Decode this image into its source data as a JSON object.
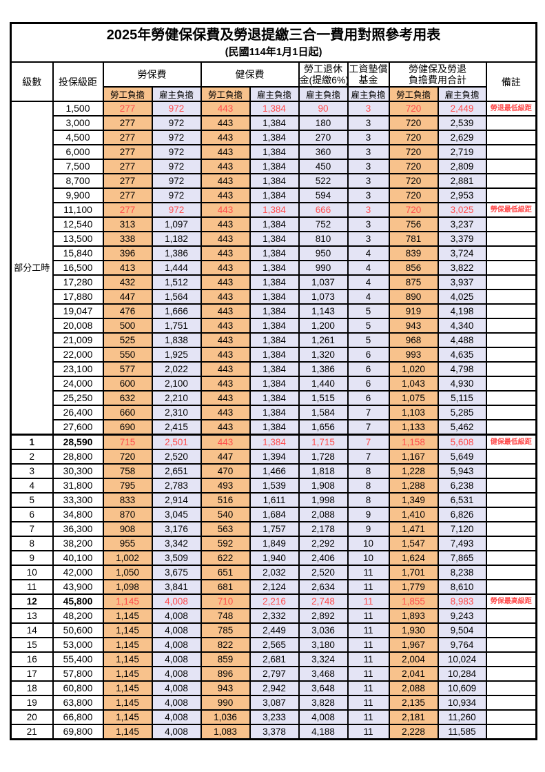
{
  "title": "2025年勞健保保費及勞退提繳三合一費用對照參考用表",
  "subtitle": "(民國114年1月1日起)",
  "columns": {
    "level": "級數",
    "bracket": "投保級距",
    "labor": "勞保費",
    "health": "健保費",
    "pension_l1": "勞工退休",
    "pension_l2": "金(提繳6%)",
    "fund_l1": "工資墊償",
    "fund_l2": "基金",
    "total_l1": "勞健保及勞退",
    "total_l2": "負擔費用合計",
    "remark": "備註",
    "employee_share": "勞工負擔",
    "employer_share": "雇主負擔"
  },
  "part_time_label": "部分工時",
  "part_time_rowspan": 23,
  "colors": {
    "employee_bg": "#F8C28C",
    "employer_bg": "#E4E4F5",
    "highlight_red": "#FF4D4D",
    "border": "#000000"
  },
  "rows": [
    {
      "level": "",
      "bracket": "1,500",
      "values": [
        "277",
        "972",
        "443",
        "1,384",
        "90",
        "3",
        "720",
        "2,449"
      ],
      "remark": "勞退最低級距",
      "red": true,
      "bold": false
    },
    {
      "level": "",
      "bracket": "3,000",
      "values": [
        "277",
        "972",
        "443",
        "1,384",
        "180",
        "3",
        "720",
        "2,539"
      ],
      "remark": ""
    },
    {
      "level": "",
      "bracket": "4,500",
      "values": [
        "277",
        "972",
        "443",
        "1,384",
        "270",
        "3",
        "720",
        "2,629"
      ],
      "remark": ""
    },
    {
      "level": "",
      "bracket": "6,000",
      "values": [
        "277",
        "972",
        "443",
        "1,384",
        "360",
        "3",
        "720",
        "2,719"
      ],
      "remark": ""
    },
    {
      "level": "",
      "bracket": "7,500",
      "values": [
        "277",
        "972",
        "443",
        "1,384",
        "450",
        "3",
        "720",
        "2,809"
      ],
      "remark": ""
    },
    {
      "level": "",
      "bracket": "8,700",
      "values": [
        "277",
        "972",
        "443",
        "1,384",
        "522",
        "3",
        "720",
        "2,881"
      ],
      "remark": ""
    },
    {
      "level": "",
      "bracket": "9,900",
      "values": [
        "277",
        "972",
        "443",
        "1,384",
        "594",
        "3",
        "720",
        "2,953"
      ],
      "remark": ""
    },
    {
      "level": "",
      "bracket": "11,100",
      "values": [
        "277",
        "972",
        "443",
        "1,384",
        "666",
        "3",
        "720",
        "3,025"
      ],
      "remark": "勞保最低級距",
      "red": true,
      "bold": false
    },
    {
      "level": "",
      "bracket": "12,540",
      "values": [
        "313",
        "1,097",
        "443",
        "1,384",
        "752",
        "3",
        "756",
        "3,237"
      ],
      "remark": ""
    },
    {
      "level": "",
      "bracket": "13,500",
      "values": [
        "338",
        "1,182",
        "443",
        "1,384",
        "810",
        "3",
        "781",
        "3,379"
      ],
      "remark": ""
    },
    {
      "level": "",
      "bracket": "15,840",
      "values": [
        "396",
        "1,386",
        "443",
        "1,384",
        "950",
        "4",
        "839",
        "3,724"
      ],
      "remark": ""
    },
    {
      "level": "",
      "bracket": "16,500",
      "values": [
        "413",
        "1,444",
        "443",
        "1,384",
        "990",
        "4",
        "856",
        "3,822"
      ],
      "remark": ""
    },
    {
      "level": "",
      "bracket": "17,280",
      "values": [
        "432",
        "1,512",
        "443",
        "1,384",
        "1,037",
        "4",
        "875",
        "3,937"
      ],
      "remark": ""
    },
    {
      "level": "",
      "bracket": "17,880",
      "values": [
        "447",
        "1,564",
        "443",
        "1,384",
        "1,073",
        "4",
        "890",
        "4,025"
      ],
      "remark": ""
    },
    {
      "level": "",
      "bracket": "19,047",
      "values": [
        "476",
        "1,666",
        "443",
        "1,384",
        "1,143",
        "5",
        "919",
        "4,198"
      ],
      "remark": ""
    },
    {
      "level": "",
      "bracket": "20,008",
      "values": [
        "500",
        "1,751",
        "443",
        "1,384",
        "1,200",
        "5",
        "943",
        "4,340"
      ],
      "remark": ""
    },
    {
      "level": "",
      "bracket": "21,009",
      "values": [
        "525",
        "1,838",
        "443",
        "1,384",
        "1,261",
        "5",
        "968",
        "4,488"
      ],
      "remark": ""
    },
    {
      "level": "",
      "bracket": "22,000",
      "values": [
        "550",
        "1,925",
        "443",
        "1,384",
        "1,320",
        "6",
        "993",
        "4,635"
      ],
      "remark": ""
    },
    {
      "level": "",
      "bracket": "23,100",
      "values": [
        "577",
        "2,022",
        "443",
        "1,384",
        "1,386",
        "6",
        "1,020",
        "4,798"
      ],
      "remark": ""
    },
    {
      "level": "",
      "bracket": "24,000",
      "values": [
        "600",
        "2,100",
        "443",
        "1,384",
        "1,440",
        "6",
        "1,043",
        "4,930"
      ],
      "remark": ""
    },
    {
      "level": "",
      "bracket": "25,250",
      "values": [
        "632",
        "2,210",
        "443",
        "1,384",
        "1,515",
        "6",
        "1,075",
        "5,115"
      ],
      "remark": ""
    },
    {
      "level": "",
      "bracket": "26,400",
      "values": [
        "660",
        "2,310",
        "443",
        "1,384",
        "1,584",
        "7",
        "1,103",
        "5,285"
      ],
      "remark": ""
    },
    {
      "level": "",
      "bracket": "27,600",
      "values": [
        "690",
        "2,415",
        "443",
        "1,384",
        "1,656",
        "7",
        "1,133",
        "5,462"
      ],
      "remark": ""
    },
    {
      "level": "1",
      "bracket": "28,590",
      "values": [
        "715",
        "2,501",
        "443",
        "1,384",
        "1,715",
        "7",
        "1,158",
        "5,608"
      ],
      "remark": "健保最低級距",
      "red": true,
      "bold": true
    },
    {
      "level": "2",
      "bracket": "28,800",
      "values": [
        "720",
        "2,520",
        "447",
        "1,394",
        "1,728",
        "7",
        "1,167",
        "5,649"
      ],
      "remark": ""
    },
    {
      "level": "3",
      "bracket": "30,300",
      "values": [
        "758",
        "2,651",
        "470",
        "1,466",
        "1,818",
        "8",
        "1,228",
        "5,943"
      ],
      "remark": ""
    },
    {
      "level": "4",
      "bracket": "31,800",
      "values": [
        "795",
        "2,783",
        "493",
        "1,539",
        "1,908",
        "8",
        "1,288",
        "6,238"
      ],
      "remark": ""
    },
    {
      "level": "5",
      "bracket": "33,300",
      "values": [
        "833",
        "2,914",
        "516",
        "1,611",
        "1,998",
        "8",
        "1,349",
        "6,531"
      ],
      "remark": ""
    },
    {
      "level": "6",
      "bracket": "34,800",
      "values": [
        "870",
        "3,045",
        "540",
        "1,684",
        "2,088",
        "9",
        "1,410",
        "6,826"
      ],
      "remark": ""
    },
    {
      "level": "7",
      "bracket": "36,300",
      "values": [
        "908",
        "3,176",
        "563",
        "1,757",
        "2,178",
        "9",
        "1,471",
        "7,120"
      ],
      "remark": ""
    },
    {
      "level": "8",
      "bracket": "38,200",
      "values": [
        "955",
        "3,342",
        "592",
        "1,849",
        "2,292",
        "10",
        "1,547",
        "7,493"
      ],
      "remark": ""
    },
    {
      "level": "9",
      "bracket": "40,100",
      "values": [
        "1,002",
        "3,509",
        "622",
        "1,940",
        "2,406",
        "10",
        "1,624",
        "7,865"
      ],
      "remark": ""
    },
    {
      "level": "10",
      "bracket": "42,000",
      "values": [
        "1,050",
        "3,675",
        "651",
        "2,032",
        "2,520",
        "11",
        "1,701",
        "8,238"
      ],
      "remark": ""
    },
    {
      "level": "11",
      "bracket": "43,900",
      "values": [
        "1,098",
        "3,841",
        "681",
        "2,124",
        "2,634",
        "11",
        "1,779",
        "8,610"
      ],
      "remark": ""
    },
    {
      "level": "12",
      "bracket": "45,800",
      "values": [
        "1,145",
        "4,008",
        "710",
        "2,216",
        "2,748",
        "11",
        "1,855",
        "8,983"
      ],
      "remark": "勞保最高級距",
      "red": true,
      "bold": true
    },
    {
      "level": "13",
      "bracket": "48,200",
      "values": [
        "1,145",
        "4,008",
        "748",
        "2,332",
        "2,892",
        "11",
        "1,893",
        "9,243"
      ],
      "remark": ""
    },
    {
      "level": "14",
      "bracket": "50,600",
      "values": [
        "1,145",
        "4,008",
        "785",
        "2,449",
        "3,036",
        "11",
        "1,930",
        "9,504"
      ],
      "remark": ""
    },
    {
      "level": "15",
      "bracket": "53,000",
      "values": [
        "1,145",
        "4,008",
        "822",
        "2,565",
        "3,180",
        "11",
        "1,967",
        "9,764"
      ],
      "remark": ""
    },
    {
      "level": "16",
      "bracket": "55,400",
      "values": [
        "1,145",
        "4,008",
        "859",
        "2,681",
        "3,324",
        "11",
        "2,004",
        "10,024"
      ],
      "remark": ""
    },
    {
      "level": "17",
      "bracket": "57,800",
      "values": [
        "1,145",
        "4,008",
        "896",
        "2,797",
        "3,468",
        "11",
        "2,041",
        "10,284"
      ],
      "remark": ""
    },
    {
      "level": "18",
      "bracket": "60,800",
      "values": [
        "1,145",
        "4,008",
        "943",
        "2,942",
        "3,648",
        "11",
        "2,088",
        "10,609"
      ],
      "remark": ""
    },
    {
      "level": "19",
      "bracket": "63,800",
      "values": [
        "1,145",
        "4,008",
        "990",
        "3,087",
        "3,828",
        "11",
        "2,135",
        "10,934"
      ],
      "remark": ""
    },
    {
      "level": "20",
      "bracket": "66,800",
      "values": [
        "1,145",
        "4,008",
        "1,036",
        "3,233",
        "4,008",
        "11",
        "2,181",
        "11,260"
      ],
      "remark": ""
    },
    {
      "level": "21",
      "bracket": "69,800",
      "values": [
        "1,145",
        "4,008",
        "1,083",
        "3,378",
        "4,188",
        "11",
        "2,228",
        "11,585"
      ],
      "remark": ""
    }
  ]
}
